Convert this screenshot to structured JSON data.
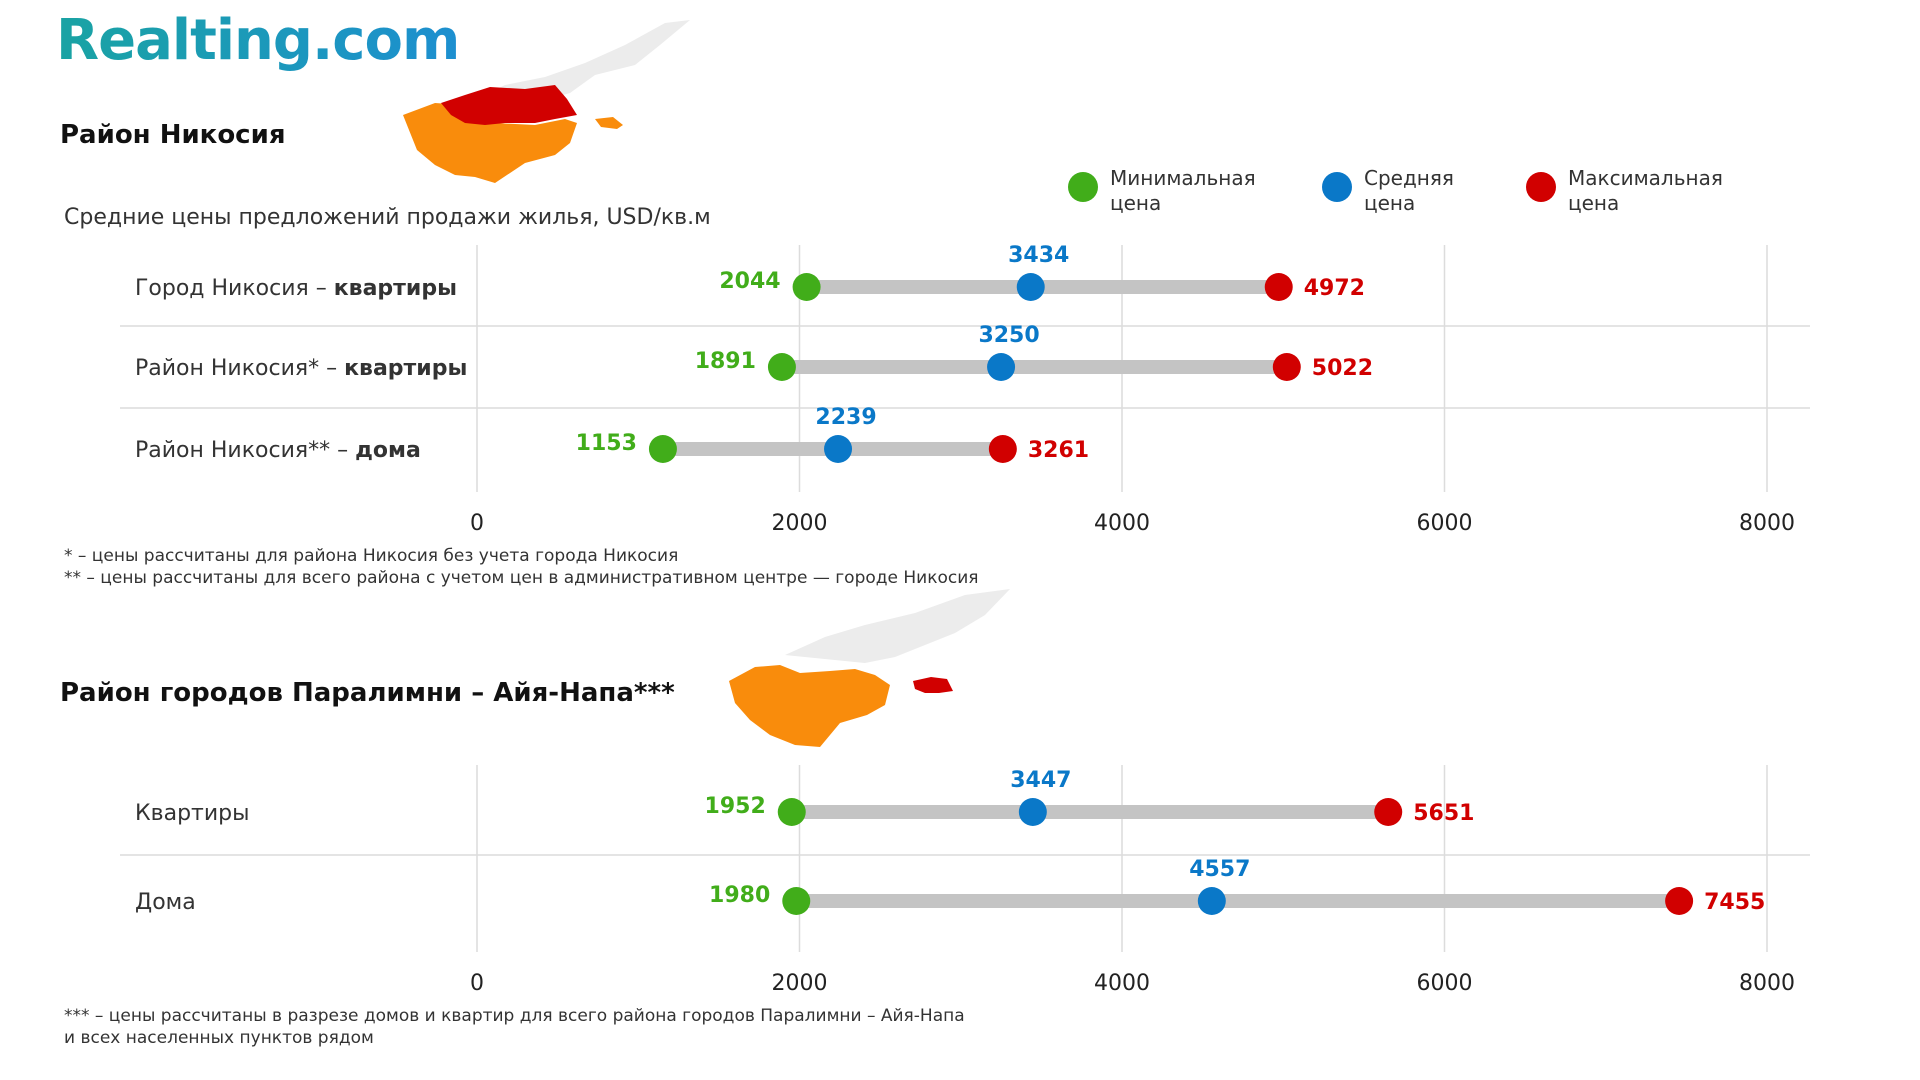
{
  "logo": "Realting.com",
  "colors": {
    "min": "#41ad1a",
    "avg": "#0a78c8",
    "max": "#d10000",
    "bar": "#c4c4c4",
    "map_orange": "#f98c0c",
    "map_red": "#d10000",
    "map_gray": "#ececec"
  },
  "legend": {
    "min": "Минимальная цена",
    "avg": "Средняя цена",
    "max": "Максимальная цена"
  },
  "section1": {
    "title": "Район Никосия",
    "subtitle": "Средние цены предложений продажи жилья, USD/кв.м",
    "notes": [
      "* – цены рассчитаны для района Никосия без учета города Никосия",
      "** – цены рассчитаны для всего района с учетом цен в административном центре — городе Никосия"
    ]
  },
  "section2": {
    "title": "Район городов Паралимни – Айя-Напа***",
    "notes": [
      "*** – цены рассчитаны в разрезе домов и квартир для всего района городов Паралимни – Айя-Напа",
      "и всех населенных пунктов рядом"
    ]
  },
  "chart_data": [
    {
      "type": "dumbbell",
      "title": "Район Никосия",
      "subtitle": "Средние цены предложений продажи жилья, USD/кв.м",
      "xlim": [
        0,
        8000
      ],
      "ticks": [
        0,
        2000,
        4000,
        6000,
        8000
      ],
      "rows": [
        {
          "label": "Город Никосия – ",
          "label_bold": "квартиры",
          "min": 2044,
          "avg": 3434,
          "max": 4972
        },
        {
          "label": "Район Никосия* – ",
          "label_bold": "квартиры",
          "min": 1891,
          "avg": 3250,
          "max": 5022
        },
        {
          "label": "Район Никосия** – ",
          "label_bold": "дома",
          "min": 1153,
          "avg": 2239,
          "max": 3261
        }
      ]
    },
    {
      "type": "dumbbell",
      "title": "Район городов Паралимни – Айя-Напа***",
      "xlim": [
        0,
        8000
      ],
      "ticks": [
        0,
        2000,
        4000,
        6000,
        8000
      ],
      "rows": [
        {
          "label": "Квартиры",
          "label_bold": "",
          "min": 1952,
          "avg": 3447,
          "max": 5651
        },
        {
          "label": "Дома",
          "label_bold": "",
          "min": 1980,
          "avg": 4557,
          "max": 7455
        }
      ]
    }
  ]
}
